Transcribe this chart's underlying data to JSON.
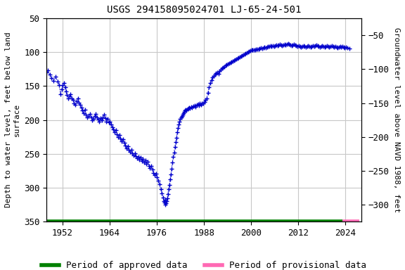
{
  "title": "USGS 294158095024701 LJ-65-24-501",
  "ylabel_left": "Depth to water level, feet below land\nsurface",
  "ylabel_right": "Groundwater level above NAVD 1988, feet",
  "xlim": [
    1948,
    2028
  ],
  "ylim_left": [
    350,
    50
  ],
  "ylim_right": [
    -325,
    -25
  ],
  "xticks": [
    1952,
    1964,
    1976,
    1988,
    2000,
    2012,
    2024
  ],
  "yticks_left": [
    50,
    100,
    150,
    200,
    250,
    300,
    350
  ],
  "yticks_right": [
    -50,
    -100,
    -150,
    -200,
    -250,
    -300
  ],
  "title_fontsize": 10,
  "axis_label_fontsize": 8,
  "tick_fontsize": 9,
  "legend_fontsize": 9,
  "bg_color": "#ffffff",
  "grid_color": "#c8c8c8",
  "data_color": "#0000cc",
  "approved_color": "#008000",
  "provisional_color": "#ff69b4",
  "font_family": "monospace",
  "key_points": [
    [
      1948.0,
      130
    ],
    [
      1948.3,
      127
    ],
    [
      1948.8,
      133
    ],
    [
      1949.2,
      138
    ],
    [
      1949.8,
      142
    ],
    [
      1950.3,
      136
    ],
    [
      1950.8,
      143
    ],
    [
      1951.2,
      148
    ],
    [
      1951.5,
      162
    ],
    [
      1951.8,
      155
    ],
    [
      1952.1,
      148
    ],
    [
      1952.4,
      145
    ],
    [
      1952.7,
      152
    ],
    [
      1952.9,
      158
    ],
    [
      1953.2,
      163
    ],
    [
      1953.5,
      168
    ],
    [
      1953.8,
      165
    ],
    [
      1954.1,
      162
    ],
    [
      1954.4,
      168
    ],
    [
      1954.7,
      170
    ],
    [
      1955.0,
      175
    ],
    [
      1955.3,
      178
    ],
    [
      1955.6,
      172
    ],
    [
      1955.9,
      168
    ],
    [
      1956.2,
      174
    ],
    [
      1956.5,
      178
    ],
    [
      1956.8,
      182
    ],
    [
      1957.1,
      186
    ],
    [
      1957.4,
      190
    ],
    [
      1957.7,
      185
    ],
    [
      1958.0,
      192
    ],
    [
      1958.3,
      196
    ],
    [
      1958.7,
      194
    ],
    [
      1959.0,
      191
    ],
    [
      1959.3,
      196
    ],
    [
      1959.6,
      200
    ],
    [
      1959.9,
      198
    ],
    [
      1960.2,
      194
    ],
    [
      1960.5,
      191
    ],
    [
      1960.8,
      196
    ],
    [
      1961.1,
      199
    ],
    [
      1961.4,
      202
    ],
    [
      1961.7,
      197
    ],
    [
      1962.0,
      200
    ],
    [
      1962.3,
      196
    ],
    [
      1962.6,
      192
    ],
    [
      1962.9,
      197
    ],
    [
      1963.2,
      202
    ],
    [
      1963.5,
      198
    ],
    [
      1963.8,
      204
    ],
    [
      1964.1,
      202
    ],
    [
      1964.4,
      207
    ],
    [
      1964.7,
      211
    ],
    [
      1965.0,
      214
    ],
    [
      1965.3,
      218
    ],
    [
      1965.6,
      215
    ],
    [
      1965.9,
      221
    ],
    [
      1966.2,
      225
    ],
    [
      1966.5,
      222
    ],
    [
      1966.8,
      227
    ],
    [
      1967.1,
      232
    ],
    [
      1967.4,
      229
    ],
    [
      1967.7,
      234
    ],
    [
      1968.0,
      238
    ],
    [
      1968.3,
      242
    ],
    [
      1968.6,
      239
    ],
    [
      1968.9,
      244
    ],
    [
      1969.2,
      247
    ],
    [
      1969.5,
      244
    ],
    [
      1969.8,
      249
    ],
    [
      1970.1,
      252
    ],
    [
      1970.4,
      249
    ],
    [
      1970.7,
      253
    ],
    [
      1971.0,
      257
    ],
    [
      1971.3,
      254
    ],
    [
      1971.6,
      259
    ],
    [
      1971.9,
      256
    ],
    [
      1972.2,
      261
    ],
    [
      1972.5,
      258
    ],
    [
      1972.8,
      263
    ],
    [
      1973.1,
      260
    ],
    [
      1973.4,
      265
    ],
    [
      1973.7,
      262
    ],
    [
      1974.0,
      268
    ],
    [
      1974.3,
      271
    ],
    [
      1974.6,
      268
    ],
    [
      1974.9,
      273
    ],
    [
      1975.2,
      278
    ],
    [
      1975.5,
      282
    ],
    [
      1975.8,
      279
    ],
    [
      1976.1,
      285
    ],
    [
      1976.4,
      290
    ],
    [
      1976.7,
      295
    ],
    [
      1977.0,
      302
    ],
    [
      1977.3,
      309
    ],
    [
      1977.6,
      315
    ],
    [
      1977.8,
      320
    ],
    [
      1978.0,
      322
    ],
    [
      1978.1,
      318
    ],
    [
      1978.2,
      325
    ],
    [
      1978.35,
      323
    ],
    [
      1978.5,
      320
    ],
    [
      1978.65,
      316
    ],
    [
      1978.8,
      310
    ],
    [
      1979.0,
      302
    ],
    [
      1979.2,
      296
    ],
    [
      1979.4,
      288
    ],
    [
      1979.6,
      280
    ],
    [
      1979.8,
      272
    ],
    [
      1980.0,
      263
    ],
    [
      1980.2,
      255
    ],
    [
      1980.4,
      248
    ],
    [
      1980.6,
      240
    ],
    [
      1980.8,
      233
    ],
    [
      1981.0,
      226
    ],
    [
      1981.2,
      218
    ],
    [
      1981.4,
      212
    ],
    [
      1981.6,
      207
    ],
    [
      1981.8,
      202
    ],
    [
      1982.0,
      198
    ],
    [
      1982.2,
      196
    ],
    [
      1982.4,
      194
    ],
    [
      1982.6,
      192
    ],
    [
      1982.8,
      190
    ],
    [
      1983.0,
      188
    ],
    [
      1983.2,
      186
    ],
    [
      1983.4,
      185
    ],
    [
      1983.6,
      186
    ],
    [
      1983.8,
      184
    ],
    [
      1984.0,
      183
    ],
    [
      1984.2,
      182
    ],
    [
      1984.5,
      183
    ],
    [
      1984.8,
      181
    ],
    [
      1985.0,
      182
    ],
    [
      1985.3,
      180
    ],
    [
      1985.6,
      179
    ],
    [
      1985.9,
      181
    ],
    [
      1986.2,
      178
    ],
    [
      1986.5,
      177
    ],
    [
      1986.8,
      179
    ],
    [
      1987.0,
      176
    ],
    [
      1987.3,
      178
    ],
    [
      1987.5,
      175
    ],
    [
      1987.8,
      176
    ],
    [
      1988.1,
      173
    ],
    [
      1988.4,
      170
    ],
    [
      1988.7,
      168
    ],
    [
      1989.0,
      160
    ],
    [
      1989.3,
      152
    ],
    [
      1989.6,
      145
    ],
    [
      1989.9,
      141
    ],
    [
      1990.2,
      137
    ],
    [
      1990.5,
      135
    ],
    [
      1990.8,
      133
    ],
    [
      1991.1,
      131
    ],
    [
      1991.4,
      130
    ],
    [
      1991.7,
      132
    ],
    [
      1992.0,
      128
    ],
    [
      1992.3,
      126
    ],
    [
      1992.6,
      124
    ],
    [
      1992.9,
      122
    ],
    [
      1993.2,
      121
    ],
    [
      1993.5,
      119
    ],
    [
      1993.8,
      118
    ],
    [
      1994.1,
      117
    ],
    [
      1994.4,
      116
    ],
    [
      1994.7,
      115
    ],
    [
      1995.0,
      114
    ],
    [
      1995.3,
      113
    ],
    [
      1995.6,
      112
    ],
    [
      1995.9,
      111
    ],
    [
      1996.2,
      110
    ],
    [
      1996.5,
      109
    ],
    [
      1996.8,
      108
    ],
    [
      1997.1,
      107
    ],
    [
      1997.4,
      106
    ],
    [
      1997.7,
      105
    ],
    [
      1998.0,
      104
    ],
    [
      1998.3,
      103
    ],
    [
      1998.6,
      102
    ],
    [
      1998.9,
      101
    ],
    [
      1999.2,
      100
    ],
    [
      1999.5,
      99
    ],
    [
      1999.8,
      98
    ],
    [
      2000.1,
      97
    ],
    [
      2000.4,
      96
    ],
    [
      2000.7,
      97
    ],
    [
      2001.0,
      96
    ],
    [
      2001.3,
      95
    ],
    [
      2001.6,
      95
    ],
    [
      2001.9,
      95
    ],
    [
      2002.2,
      94
    ],
    [
      2002.5,
      93
    ],
    [
      2002.8,
      94
    ],
    [
      2003.1,
      93
    ],
    [
      2003.4,
      92
    ],
    [
      2003.7,
      93
    ],
    [
      2004.0,
      92
    ],
    [
      2004.3,
      91
    ],
    [
      2004.6,
      91
    ],
    [
      2004.9,
      90
    ],
    [
      2005.2,
      91
    ],
    [
      2005.5,
      90
    ],
    [
      2005.8,
      91
    ],
    [
      2006.1,
      90
    ],
    [
      2006.4,
      89
    ],
    [
      2006.7,
      90
    ],
    [
      2007.0,
      89
    ],
    [
      2007.3,
      88
    ],
    [
      2007.6,
      89
    ],
    [
      2007.9,
      90
    ],
    [
      2008.2,
      89
    ],
    [
      2008.5,
      88
    ],
    [
      2008.8,
      89
    ],
    [
      2009.1,
      88
    ],
    [
      2009.4,
      87
    ],
    [
      2009.7,
      88
    ],
    [
      2010.0,
      89
    ],
    [
      2010.3,
      90
    ],
    [
      2010.6,
      89
    ],
    [
      2010.9,
      88
    ],
    [
      2011.2,
      89
    ],
    [
      2011.5,
      90
    ],
    [
      2011.8,
      91
    ],
    [
      2012.1,
      90
    ],
    [
      2012.4,
      91
    ],
    [
      2012.7,
      92
    ],
    [
      2013.0,
      91
    ],
    [
      2013.3,
      90
    ],
    [
      2013.6,
      91
    ],
    [
      2013.9,
      92
    ],
    [
      2014.2,
      91
    ],
    [
      2014.5,
      90
    ],
    [
      2014.8,
      91
    ],
    [
      2015.1,
      92
    ],
    [
      2015.4,
      91
    ],
    [
      2015.7,
      90
    ],
    [
      2016.0,
      91
    ],
    [
      2016.3,
      90
    ],
    [
      2016.6,
      89
    ],
    [
      2016.9,
      90
    ],
    [
      2017.2,
      91
    ],
    [
      2017.5,
      92
    ],
    [
      2017.8,
      91
    ],
    [
      2018.1,
      90
    ],
    [
      2018.4,
      91
    ],
    [
      2018.7,
      92
    ],
    [
      2019.0,
      91
    ],
    [
      2019.3,
      90
    ],
    [
      2019.6,
      91
    ],
    [
      2019.9,
      92
    ],
    [
      2020.2,
      91
    ],
    [
      2020.5,
      90
    ],
    [
      2020.8,
      91
    ],
    [
      2021.1,
      92
    ],
    [
      2021.4,
      91
    ],
    [
      2021.7,
      92
    ],
    [
      2022.0,
      93
    ],
    [
      2022.3,
      92
    ],
    [
      2022.6,
      91
    ],
    [
      2022.9,
      92
    ],
    [
      2023.2,
      91
    ],
    [
      2023.5,
      92
    ],
    [
      2023.8,
      93
    ],
    [
      2024.1,
      92
    ],
    [
      2024.5,
      93
    ],
    [
      2025.0,
      94
    ]
  ]
}
